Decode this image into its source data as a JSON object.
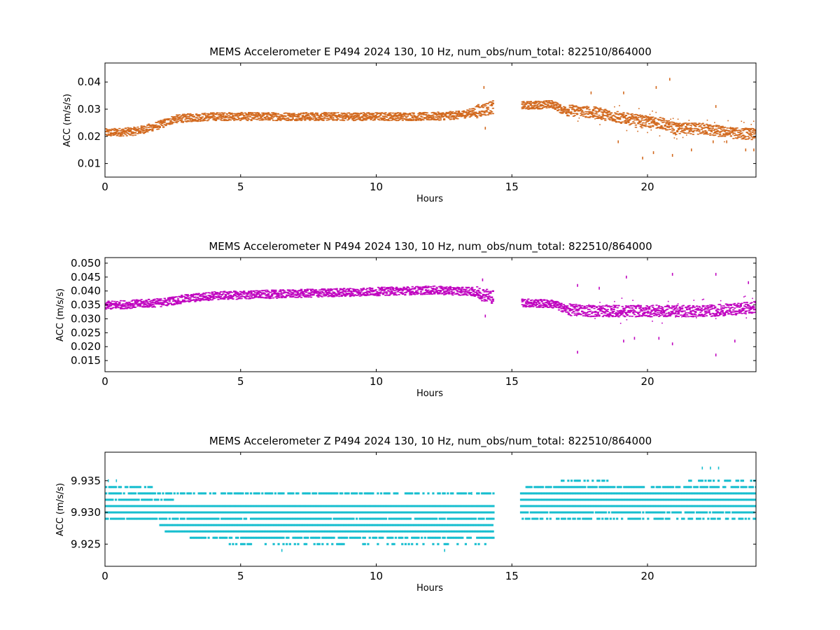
{
  "chart_data": [
    {
      "type": "scatter",
      "title": "MEMS Accelerometer E P494 2024 130, 10 Hz, num_obs/num_total: 822510/864000",
      "xlabel": "Hours",
      "ylabel": "ACC (m/s/s)",
      "xlim": [
        0,
        24
      ],
      "ylim": [
        0.005,
        0.047
      ],
      "xticks": [
        "0",
        "5",
        "10",
        "15",
        "20"
      ],
      "yticks": [
        "0.01",
        "0.02",
        "0.03",
        "0.04"
      ],
      "color": "#d2691e",
      "gap": [
        14.3,
        15.3
      ],
      "trend": [
        [
          0,
          0.0215
        ],
        [
          1,
          0.022
        ],
        [
          1.5,
          0.023
        ],
        [
          2,
          0.0245
        ],
        [
          2.5,
          0.0265
        ],
        [
          3,
          0.027
        ],
        [
          4,
          0.0275
        ],
        [
          6,
          0.0275
        ],
        [
          8,
          0.0275
        ],
        [
          10,
          0.0275
        ],
        [
          12,
          0.0275
        ],
        [
          13,
          0.028
        ],
        [
          13.5,
          0.029
        ],
        [
          14.3,
          0.031
        ],
        [
          15.3,
          0.0315
        ],
        [
          16.5,
          0.032
        ],
        [
          16.8,
          0.03
        ],
        [
          18,
          0.029
        ],
        [
          19,
          0.027
        ],
        [
          20,
          0.0255
        ],
        [
          20.5,
          0.025
        ],
        [
          21,
          0.023
        ],
        [
          22,
          0.023
        ],
        [
          23,
          0.0215
        ],
        [
          24,
          0.021
        ]
      ],
      "band_half_width": 0.0015,
      "outliers": [
        [
          13.95,
          0.038
        ],
        [
          14.0,
          0.023
        ],
        [
          17.9,
          0.036
        ],
        [
          18.9,
          0.018
        ],
        [
          19.1,
          0.036
        ],
        [
          19.8,
          0.012
        ],
        [
          20.2,
          0.014
        ],
        [
          20.3,
          0.038
        ],
        [
          20.8,
          0.041
        ],
        [
          20.9,
          0.013
        ],
        [
          21.6,
          0.015
        ],
        [
          22.4,
          0.018
        ],
        [
          22.5,
          0.031
        ],
        [
          22.9,
          0.018
        ],
        [
          23.6,
          0.015
        ],
        [
          23.9,
          0.015
        ]
      ]
    },
    {
      "type": "scatter",
      "title": "MEMS Accelerometer N P494 2024 130, 10 Hz, num_obs/num_total: 822510/864000",
      "xlabel": "Hours",
      "ylabel": "ACC (m/s/s)",
      "xlim": [
        0,
        24
      ],
      "ylim": [
        0.011,
        0.052
      ],
      "xticks": [
        "0",
        "5",
        "10",
        "15",
        "20"
      ],
      "yticks": [
        "0.015",
        "0.020",
        "0.025",
        "0.030",
        "0.035",
        "0.040",
        "0.045",
        "0.050"
      ],
      "color": "#bf00bf",
      "gap": [
        14.3,
        15.3
      ],
      "trend": [
        [
          0,
          0.035
        ],
        [
          2,
          0.036
        ],
        [
          3,
          0.0375
        ],
        [
          4,
          0.0385
        ],
        [
          6,
          0.039
        ],
        [
          8,
          0.0395
        ],
        [
          10,
          0.04
        ],
        [
          12,
          0.0405
        ],
        [
          13.5,
          0.04
        ],
        [
          14.3,
          0.038
        ],
        [
          15.3,
          0.036
        ],
        [
          16.5,
          0.0355
        ],
        [
          17,
          0.0335
        ],
        [
          18,
          0.033
        ],
        [
          20,
          0.033
        ],
        [
          22,
          0.033
        ],
        [
          23,
          0.0335
        ],
        [
          24,
          0.0345
        ]
      ],
      "band_half_width": 0.0015,
      "outliers": [
        [
          14.0,
          0.031
        ],
        [
          13.9,
          0.044
        ],
        [
          17.4,
          0.018
        ],
        [
          17.4,
          0.042
        ],
        [
          18.2,
          0.041
        ],
        [
          19.1,
          0.022
        ],
        [
          19.2,
          0.045
        ],
        [
          19.5,
          0.023
        ],
        [
          20.4,
          0.023
        ],
        [
          20.9,
          0.046
        ],
        [
          20.9,
          0.021
        ],
        [
          22.5,
          0.017
        ],
        [
          22.5,
          0.046
        ],
        [
          23.2,
          0.022
        ],
        [
          23.7,
          0.043
        ]
      ]
    },
    {
      "type": "scatter",
      "title": "MEMS Accelerometer Z P494 2024 130, 10 Hz, num_obs/num_total: 822510/864000",
      "xlabel": "Hours",
      "ylabel": "ACC (m/s/s)",
      "xlim": [
        0,
        24
      ],
      "ylim": [
        9.9215,
        9.9395
      ],
      "xticks": [
        "0",
        "5",
        "10",
        "15",
        "20"
      ],
      "yticks": [
        "9.925",
        "9.930",
        "9.935"
      ],
      "color": "#17becf",
      "gap": [
        14.3,
        15.3
      ],
      "quantized_levels": [
        {
          "y": 9.934,
          "start": 0,
          "end": 1.8,
          "weight": 0.6
        },
        {
          "y": 9.933,
          "start": 0,
          "end": 14.3,
          "weight": 0.7
        },
        {
          "y": 9.932,
          "start": 0,
          "end": 2.5,
          "weight": 0.9
        },
        {
          "y": 9.931,
          "start": 0,
          "end": 14.3,
          "weight": 1.0
        },
        {
          "y": 9.93,
          "start": 0,
          "end": 14.3,
          "weight": 1.0
        },
        {
          "y": 9.929,
          "start": 0,
          "end": 14.3,
          "weight": 0.9
        },
        {
          "y": 9.928,
          "start": 2.0,
          "end": 14.3,
          "weight": 1.0
        },
        {
          "y": 9.927,
          "start": 2.2,
          "end": 14.3,
          "weight": 1.0
        },
        {
          "y": 9.926,
          "start": 3.0,
          "end": 14.3,
          "weight": 0.8
        },
        {
          "y": 9.925,
          "start": 4.5,
          "end": 14.0,
          "weight": 0.3
        },
        {
          "y": 9.935,
          "start": 16.8,
          "end": 18.5,
          "weight": 0.5
        },
        {
          "y": 9.935,
          "start": 21.5,
          "end": 24,
          "weight": 0.5
        },
        {
          "y": 9.934,
          "start": 15.5,
          "end": 24,
          "weight": 0.8
        },
        {
          "y": 9.933,
          "start": 15.3,
          "end": 24,
          "weight": 1.0
        },
        {
          "y": 9.932,
          "start": 15.3,
          "end": 24,
          "weight": 1.0
        },
        {
          "y": 9.931,
          "start": 15.3,
          "end": 24,
          "weight": 1.0
        },
        {
          "y": 9.93,
          "start": 15.3,
          "end": 24,
          "weight": 0.9
        },
        {
          "y": 9.929,
          "start": 15.3,
          "end": 24,
          "weight": 0.6
        }
      ],
      "outliers": [
        [
          0.4,
          9.935
        ],
        [
          0.1,
          9.935
        ],
        [
          22.0,
          9.937
        ],
        [
          22.3,
          9.937
        ],
        [
          22.6,
          9.937
        ],
        [
          6.5,
          9.924
        ],
        [
          12.5,
          9.924
        ],
        [
          13.5,
          9.933
        ]
      ]
    }
  ]
}
